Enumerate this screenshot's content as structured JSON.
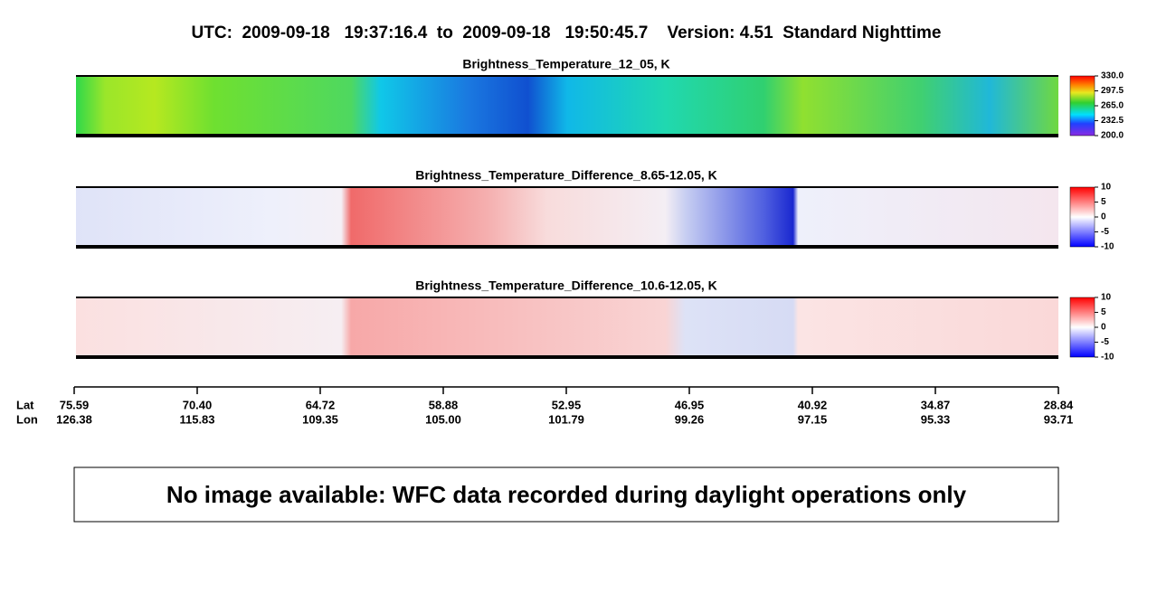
{
  "header": {
    "title": "UTC:  2009-09-18   19:37:16.4  to  2009-09-18   19:50:45.7    Version: 4.51  Standard Nighttime"
  },
  "panels": [
    {
      "title": "Brightness_Temperature_12_05, K",
      "colorbar": [
        "330.0",
        "297.5",
        "265.0",
        "232.5",
        "200.0"
      ]
    },
    {
      "title": "Brightness_Temperature_Difference_8.65-12.05, K",
      "colorbar": [
        "10",
        "5",
        "0",
        "-5",
        "-10"
      ]
    },
    {
      "title": "Brightness_Temperature_Difference_10.6-12.05, K",
      "colorbar": [
        "10",
        "5",
        "0",
        "-5",
        "-10"
      ]
    }
  ],
  "axis": {
    "lat_label": "Lat",
    "lon_label": "Lon",
    "ticks": [
      {
        "lat": "75.59",
        "lon": "126.38"
      },
      {
        "lat": "70.40",
        "lon": "115.83"
      },
      {
        "lat": "64.72",
        "lon": "109.35"
      },
      {
        "lat": "58.88",
        "lon": "105.00"
      },
      {
        "lat": "52.95",
        "lon": "101.79"
      },
      {
        "lat": "46.95",
        "lon": "99.26"
      },
      {
        "lat": "40.92",
        "lon": "97.15"
      },
      {
        "lat": "34.87",
        "lon": "95.33"
      },
      {
        "lat": "28.84",
        "lon": "93.71"
      }
    ]
  },
  "notice": "No image available: WFC data recorded during daylight operations only"
}
